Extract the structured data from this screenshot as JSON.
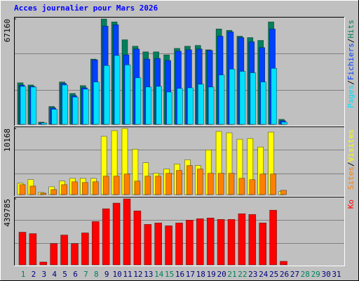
{
  "chart_data": {
    "type": "bar",
    "title": "Acces journalier pour Mars 2026",
    "categories": [
      "1",
      "2",
      "3",
      "4",
      "5",
      "6",
      "7",
      "8",
      "9",
      "10",
      "11",
      "12",
      "13",
      "14",
      "15",
      "16",
      "17",
      "18",
      "19",
      "20",
      "21",
      "22",
      "23",
      "24",
      "25",
      "26",
      "27",
      "28",
      "29",
      "30",
      "31"
    ],
    "highlight_indices": [
      0,
      6,
      7,
      13,
      14,
      20,
      21,
      27,
      28
    ],
    "highlight_color": "#00805c",
    "label_color": "#000080",
    "legend_separator": "/",
    "panels": [
      {
        "ylim": [
          0,
          67160
        ],
        "yticks": [
          67160
        ],
        "series": [
          {
            "name": "Hits",
            "color": "#00805c",
            "values": [
              26500,
              25100,
              1400,
              11400,
              27000,
              19700,
              24700,
              41600,
              67160,
              65300,
              53900,
              49800,
              46200,
              46200,
              44300,
              48400,
              49800,
              50300,
              47500,
              60800,
              59900,
              56200,
              55300,
              53500,
              65300,
              3200,
              null,
              null,
              null,
              null,
              null
            ]
          },
          {
            "name": "Fichiers",
            "color": "#0040ff",
            "values": [
              25100,
              24200,
              900,
              10500,
              26100,
              18300,
              23300,
              41100,
              62600,
              63500,
              44300,
              48000,
              41600,
              42000,
              40700,
              46600,
              47500,
              48000,
              47100,
              56200,
              58900,
              55300,
              52600,
              48900,
              60800,
              2300,
              null,
              null,
              null,
              null,
              null
            ]
          },
          {
            "name": "Pages",
            "color": "#00e0ff",
            "values": [
              24200,
              23800,
              900,
              9600,
              25100,
              17400,
              22400,
              27000,
              37500,
              43900,
              37900,
              29700,
              23800,
              24200,
              20600,
              22900,
              23300,
              25600,
              23800,
              31500,
              35200,
              33800,
              32900,
              27000,
              35700,
              1400,
              null,
              null,
              null,
              null,
              null
            ]
          }
        ]
      },
      {
        "ylim": [
          0,
          10168
        ],
        "yticks": [
          10168
        ],
        "series": [
          {
            "name": "Visites",
            "color": "#ffff00",
            "values": [
              1750,
              2300,
              330,
              1200,
              2080,
              2500,
              2500,
              2500,
              8970,
              9840,
              10168,
              7000,
              4900,
              3280,
              3940,
              4700,
              5360,
              4480,
              6890,
              9730,
              9510,
              8530,
              8640,
              7330,
              9620,
              500,
              null,
              null,
              null,
              null,
              null
            ]
          },
          {
            "name": "Sites",
            "color": "#ff8000",
            "values": [
              1530,
              1310,
              220,
              770,
              1530,
              1970,
              1860,
              1970,
              2840,
              2840,
              3170,
              2080,
              2840,
              2840,
              3280,
              3720,
              4480,
              3940,
              3280,
              3280,
              3280,
              2510,
              2300,
              3170,
              3170,
              660,
              null,
              null,
              null,
              null,
              null
            ]
          }
        ]
      },
      {
        "ylim": [
          0,
          439785
        ],
        "yticks": [
          439785
        ],
        "series": [
          {
            "name": "Ko",
            "color": "#ff0000",
            "values": [
              217500,
              208100,
              18900,
              141900,
              198600,
              141900,
              212800,
              288500,
              373600,
              411400,
              439785,
              359400,
              269600,
              279000,
              260100,
              279000,
              297900,
              307400,
              312100,
              302700,
              302700,
              340500,
              335800,
              279000,
              364100,
              23600,
              null,
              null,
              null,
              null,
              null
            ]
          }
        ]
      }
    ]
  }
}
